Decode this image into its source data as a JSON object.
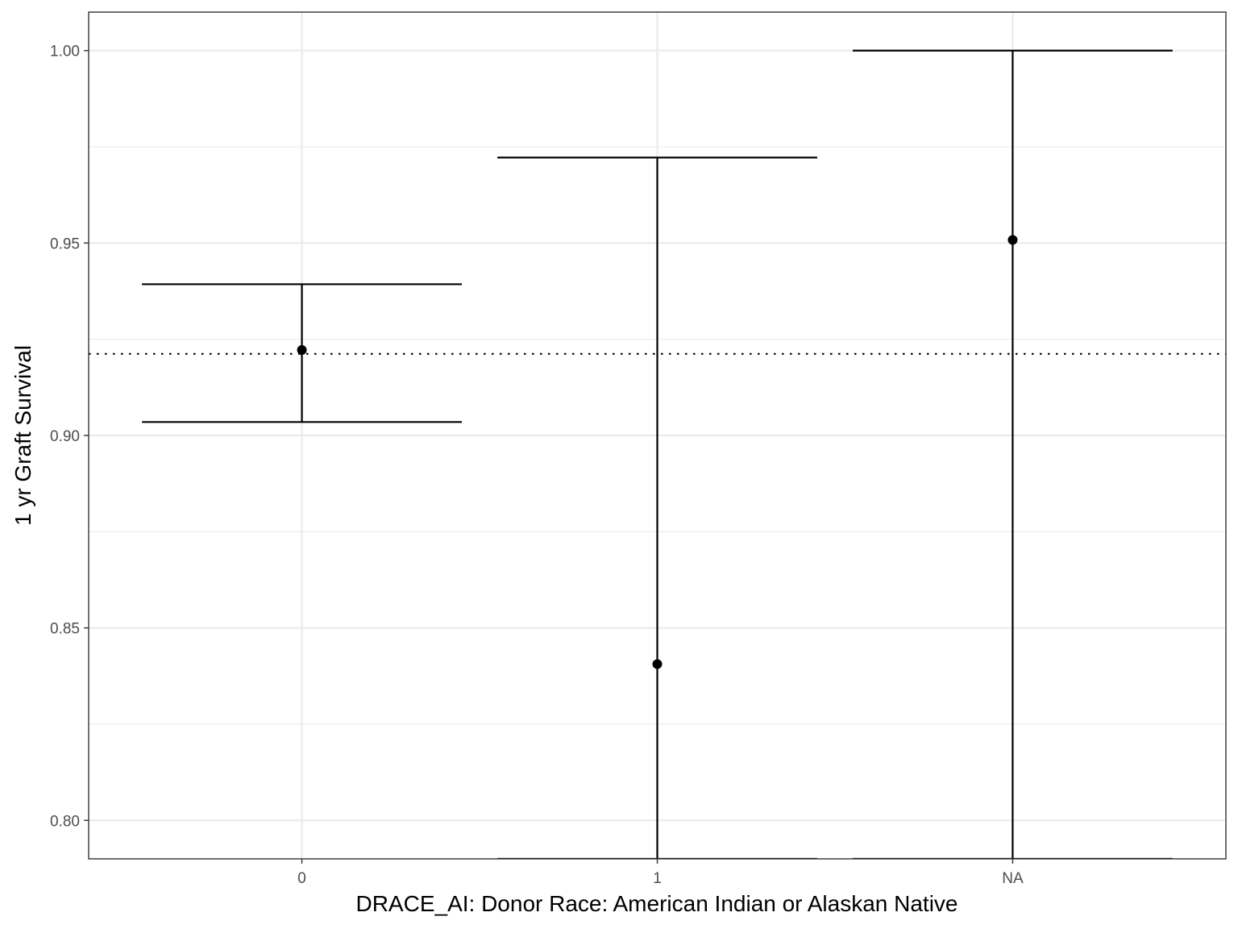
{
  "chart_data": {
    "type": "errorbar",
    "xlabel": "DRACE_AI: Donor Race: American Indian or Alaskan Native",
    "ylabel": "1 yr Graft Survival",
    "categories": [
      "0",
      "1",
      "NA"
    ],
    "points": [
      {
        "category": "0",
        "estimate": 0.9222,
        "lower": 0.9035,
        "upper": 0.9393
      },
      {
        "category": "1",
        "estimate": 0.8406,
        "lower": 0.79,
        "upper": 0.9722
      },
      {
        "category": "NA",
        "estimate": 0.9508,
        "lower": 0.79,
        "upper": 1.0
      }
    ],
    "reference_line": {
      "value": 0.9212,
      "style": "dotted"
    },
    "ylim": [
      0.79,
      1.01
    ],
    "y_ticks": [
      0.8,
      0.85,
      0.9,
      0.95,
      1.0
    ],
    "y_tick_labels": [
      "0.80",
      "0.85",
      "0.90",
      "0.95",
      "1.00"
    ],
    "grid": true,
    "legend": "none",
    "colors": {
      "marks": "#000000",
      "grid": "#ebebeb",
      "panel_border": "#333333"
    }
  }
}
